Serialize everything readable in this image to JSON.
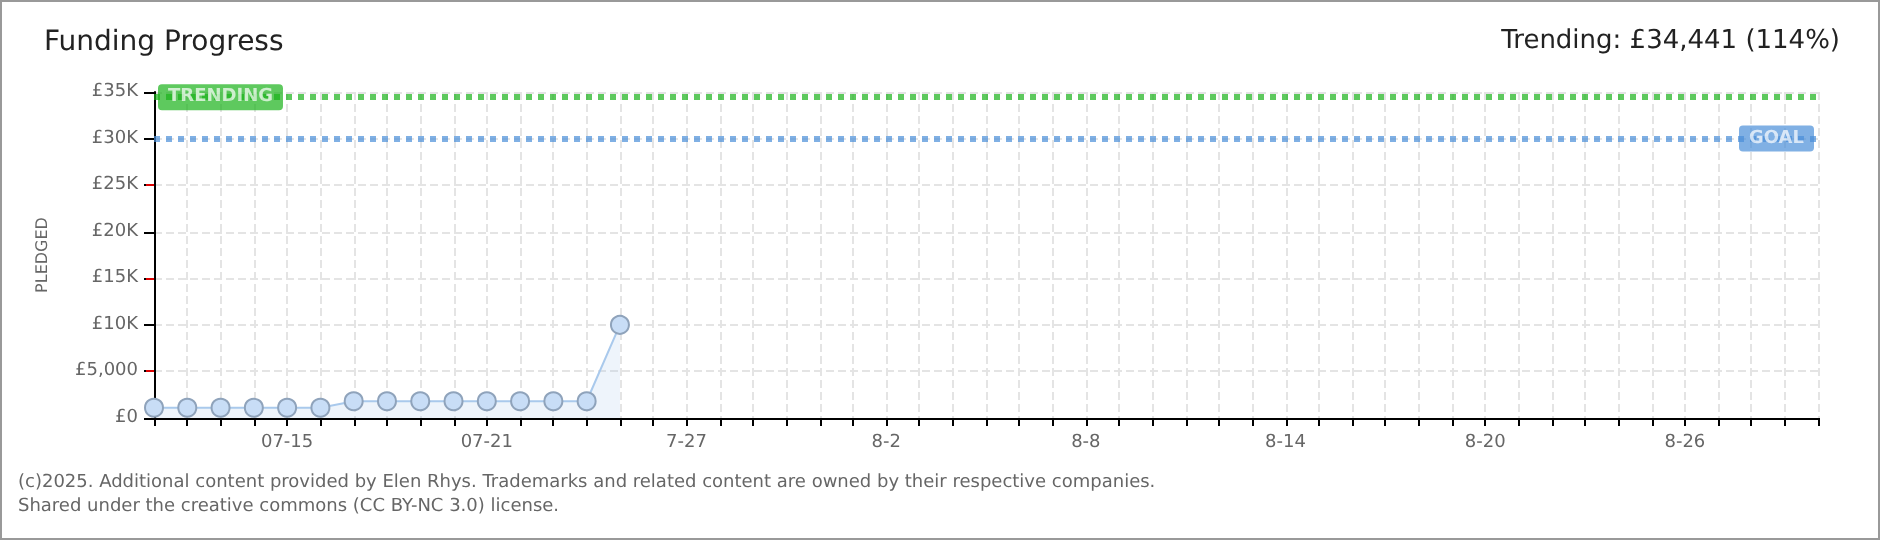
{
  "chart_data": {
    "type": "area",
    "title": "Funding Progress",
    "subtitle": "Trending: £34,441 (114%)",
    "ylabel": "PLEDGED",
    "x": [
      "--07-11",
      "--07-12",
      "--07-13",
      "--07-14",
      "--07-15",
      "--07-16",
      "--07-17",
      "--07-18",
      "--07-19",
      "--07-20",
      "--07-21",
      "--07-22",
      "--07-23",
      "--07-24",
      "--07-25"
    ],
    "series": [
      {
        "color": "#a9c9ec",
        "values": [
          1100,
          1100,
          1100,
          1100,
          1100,
          1100,
          1800,
          1800,
          1800,
          1800,
          1800,
          1800,
          1800,
          1800,
          10000
        ]
      }
    ],
    "xlim": [
      "--07-11",
      "--08-30"
    ],
    "xticks": [
      {
        "value": "--07-15",
        "label": "07-15"
      },
      {
        "value": "--07-21",
        "label": "07-21"
      },
      {
        "value": "--07-27",
        "label": "7-27"
      },
      {
        "value": "--08-02",
        "label": "8-2"
      },
      {
        "value": "--08-08",
        "label": "8-8"
      },
      {
        "value": "--08-14",
        "label": "8-14"
      },
      {
        "value": "--08-20",
        "label": "8-20"
      },
      {
        "value": "--08-26",
        "label": "8-26"
      }
    ],
    "ylim": [
      0,
      35000
    ],
    "yticks": [
      {
        "value": 0,
        "label": "£0"
      },
      {
        "value": 5000,
        "label": "£5,000"
      },
      {
        "value": 10000,
        "label": "£10K"
      },
      {
        "value": 15000,
        "label": "£15K"
      },
      {
        "value": 20000,
        "label": "£20K"
      },
      {
        "value": 25000,
        "label": "£25K"
      },
      {
        "value": 30000,
        "label": "£30K"
      },
      {
        "value": 35000,
        "label": "£35K"
      }
    ],
    "ref_lines": [
      {
        "axis": "y",
        "value": 34441,
        "label": "TRENDING",
        "color": "#19b219",
        "line_style": "dotted"
      },
      {
        "axis": "y",
        "value": 30000,
        "label": "GOAL",
        "color": "#4a8fd9",
        "line_style": "dotted"
      }
    ],
    "grid": true,
    "marker": "circle",
    "line_style": "solid",
    "annotations": [
      "(c)2025. Additional content provided by Elen Rhys. Trademarks and related content are owned by their respective companies.",
      "Shared under the creative commons (CC BY-NC 3.0) license."
    ]
  }
}
